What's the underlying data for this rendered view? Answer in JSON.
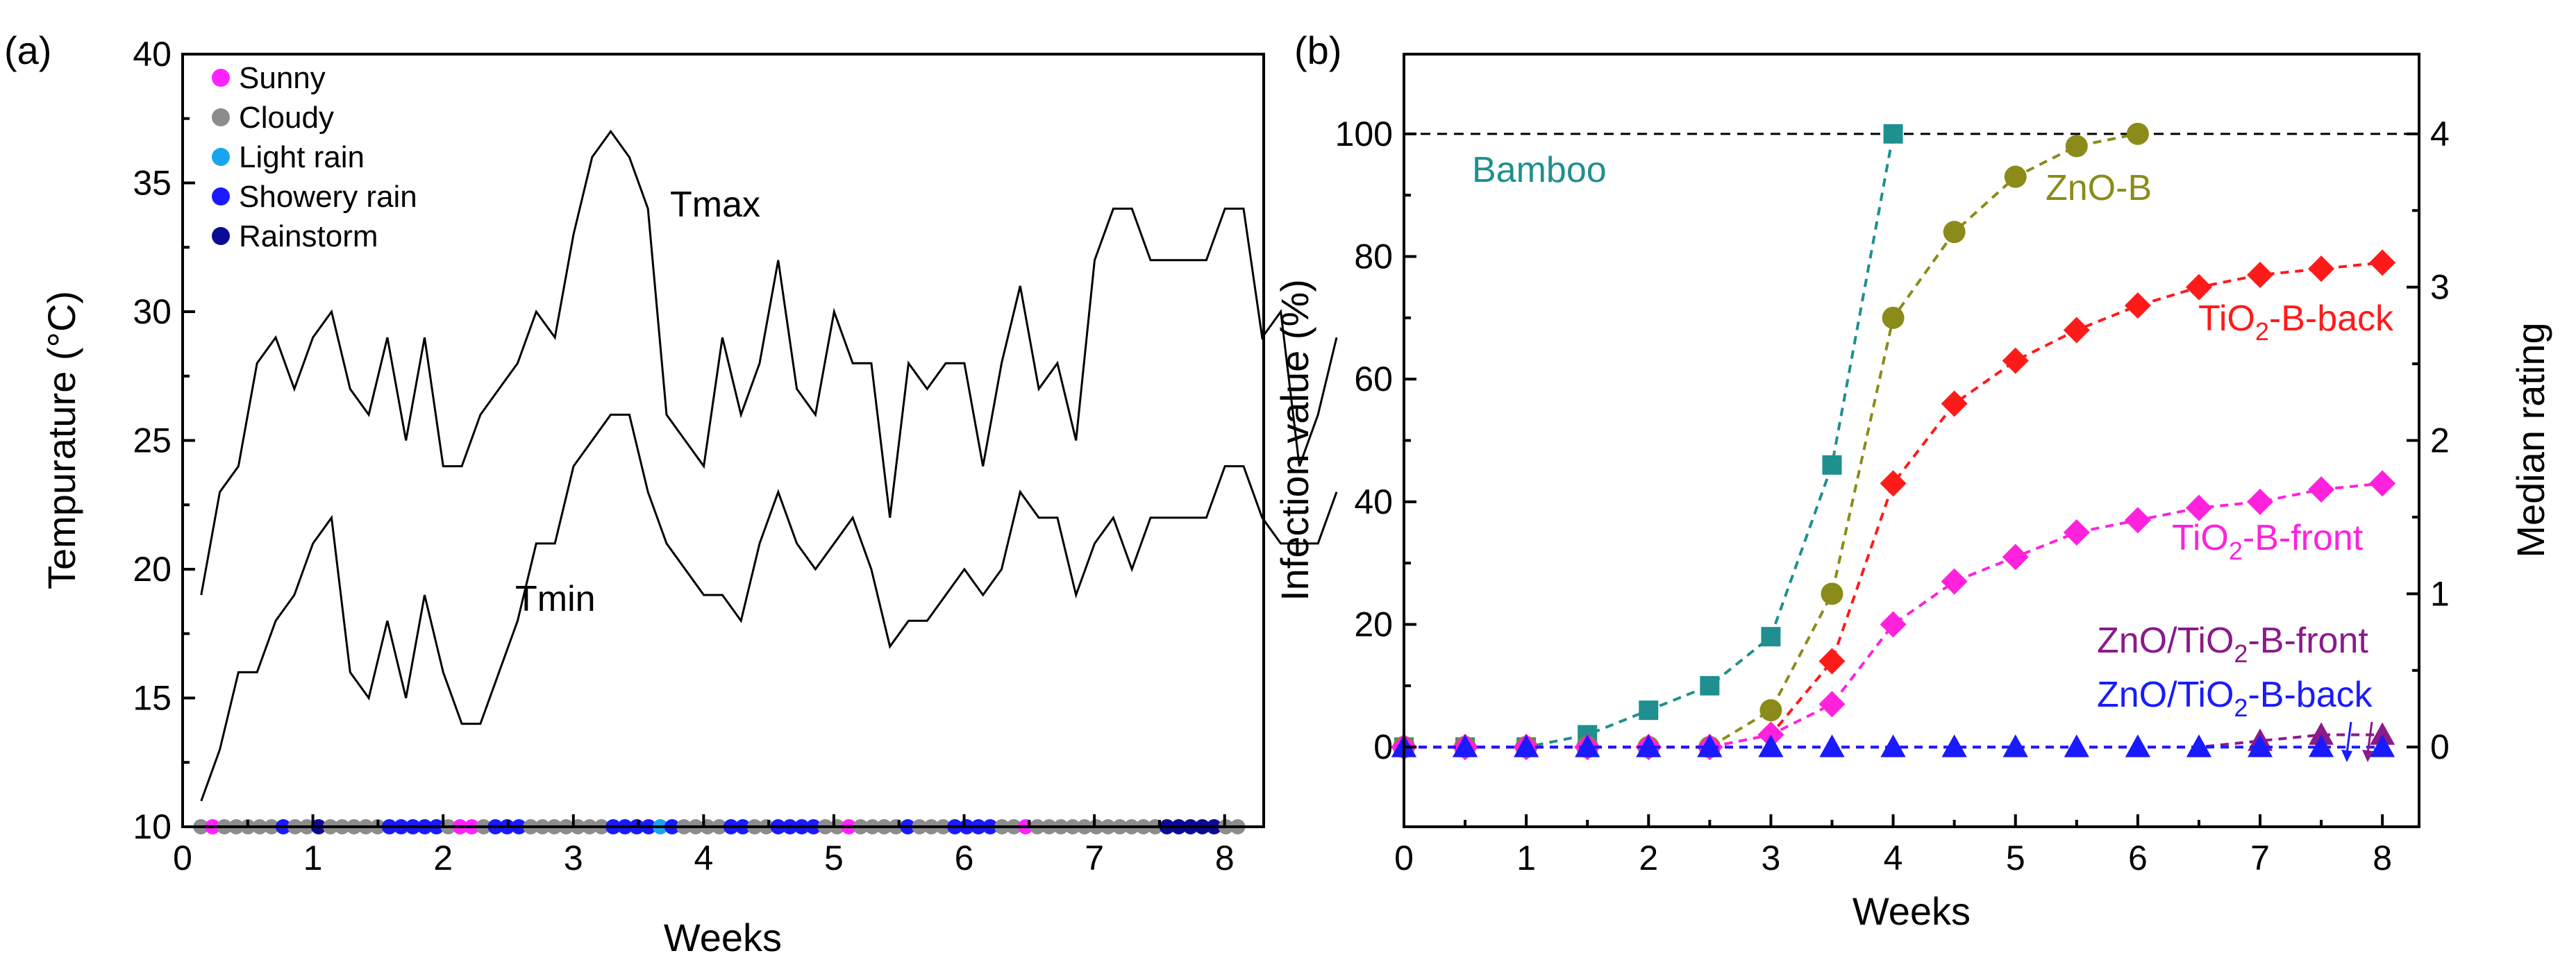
{
  "figure": {
    "panels": [
      "(a)",
      "(b)"
    ]
  },
  "chart_data": [
    {
      "type": "line",
      "panel_label": "(a)",
      "xlabel": "Weeks",
      "ylabel": "Tempurature (°C)",
      "xlim": [
        0,
        8.3
      ],
      "ylim": [
        10,
        40
      ],
      "xticks": [
        0,
        1,
        2,
        3,
        4,
        5,
        6,
        7,
        8
      ],
      "yticks": [
        10,
        15,
        20,
        25,
        30,
        35,
        40
      ],
      "x_start": 0.143,
      "x_step": 0.1429,
      "series": [
        {
          "name": "Tmax",
          "color": "#000000",
          "values": [
            19,
            23,
            24,
            28,
            29,
            27,
            29,
            30,
            27,
            26,
            29,
            25,
            29,
            24,
            24,
            26,
            27,
            28,
            30,
            29,
            33,
            36,
            37,
            36,
            34,
            26,
            25,
            24,
            29,
            26,
            28,
            32,
            27,
            26,
            30,
            28,
            28,
            22,
            28,
            27,
            28,
            28,
            24,
            28,
            31,
            27,
            28,
            25,
            32,
            34,
            34,
            32,
            32,
            32,
            32,
            34,
            34,
            29,
            30,
            24,
            26,
            29
          ]
        },
        {
          "name": "Tmin",
          "color": "#000000",
          "values": [
            11,
            13,
            16,
            16,
            18,
            19,
            21,
            22,
            16,
            15,
            18,
            15,
            19,
            16,
            14,
            14,
            16,
            18,
            21,
            21,
            24,
            25,
            26,
            26,
            23,
            21,
            20,
            19,
            19,
            18,
            21,
            23,
            21,
            20,
            21,
            22,
            20,
            17,
            18,
            18,
            19,
            20,
            19,
            20,
            23,
            22,
            22,
            19,
            21,
            22,
            20,
            22,
            22,
            22,
            22,
            24,
            24,
            22,
            21,
            21,
            21,
            23
          ]
        }
      ],
      "weather": {
        "legend": [
          {
            "key": "sunny",
            "label": "Sunny",
            "color": "#ff22ff"
          },
          {
            "key": "cloudy",
            "label": "Cloudy",
            "color": "#8c8c8c"
          },
          {
            "key": "light",
            "label": "Light rain",
            "color": "#1aa3ee"
          },
          {
            "key": "showery",
            "label": "Showery rain",
            "color": "#1a1aff"
          },
          {
            "key": "storm",
            "label": "Rainstorm",
            "color": "#0a0a96"
          }
        ],
        "y": 10,
        "days": [
          "cloudy",
          "sunny",
          "cloudy",
          "cloudy",
          "cloudy",
          "cloudy",
          "cloudy",
          "showery",
          "cloudy",
          "cloudy",
          "storm",
          "cloudy",
          "cloudy",
          "cloudy",
          "cloudy",
          "cloudy",
          "showery",
          "showery",
          "showery",
          "showery",
          "showery",
          "cloudy",
          "sunny",
          "sunny",
          "cloudy",
          "showery",
          "showery",
          "showery",
          "cloudy",
          "cloudy",
          "cloudy",
          "cloudy",
          "cloudy",
          "cloudy",
          "cloudy",
          "showery",
          "showery",
          "showery",
          "showery",
          "light",
          "showery",
          "cloudy",
          "cloudy",
          "cloudy",
          "cloudy",
          "showery",
          "showery",
          "cloudy",
          "cloudy",
          "showery",
          "showery",
          "showery",
          "showery",
          "cloudy",
          "cloudy",
          "sunny",
          "cloudy",
          "cloudy",
          "cloudy",
          "cloudy",
          "showery",
          "cloudy",
          "cloudy",
          "cloudy",
          "showery",
          "showery",
          "showery",
          "showery",
          "cloudy",
          "cloudy",
          "sunny",
          "cloudy",
          "cloudy",
          "cloudy",
          "cloudy",
          "cloudy",
          "cloudy",
          "cloudy",
          "cloudy",
          "cloudy",
          "cloudy",
          "cloudy",
          "storm",
          "storm",
          "storm",
          "storm",
          "storm",
          "cloudy",
          "cloudy"
        ]
      },
      "annotations": [
        "Tmax",
        "Tmin"
      ]
    },
    {
      "type": "line",
      "panel_label": "(b)",
      "xlabel": "Weeks",
      "ylabel": "Infection value (%)",
      "y2label": "Median rating",
      "xlim": [
        0,
        8.3
      ],
      "ylim": [
        -13,
        113
      ],
      "y2lim": [
        -0.52,
        4.52
      ],
      "xticks": [
        0,
        1,
        2,
        3,
        4,
        5,
        6,
        7,
        8
      ],
      "yticks": [
        0,
        20,
        40,
        60,
        80,
        100
      ],
      "y2ticks": [
        0,
        1,
        2,
        3,
        4
      ],
      "reference_line": 100,
      "series": [
        {
          "name": "Bamboo",
          "color": "#1f8f8f",
          "marker": "square",
          "x": [
            0,
            0.5,
            1,
            1.5,
            2,
            2.5,
            3,
            3.5,
            4
          ],
          "y": [
            0,
            0,
            0,
            2,
            6,
            10,
            18,
            46,
            100
          ]
        },
        {
          "name": "ZnO-B",
          "color": "#8b8b1a",
          "marker": "circle",
          "x": [
            0,
            0.5,
            1,
            1.5,
            2,
            2.5,
            3,
            3.5,
            4,
            4.5,
            5,
            5.5,
            6
          ],
          "y": [
            0,
            0,
            0,
            0,
            0,
            0,
            6,
            25,
            70,
            84,
            93,
            98,
            100
          ]
        },
        {
          "name": "TiO2-B-back",
          "color": "#ff1a1a",
          "marker": "diamond",
          "x": [
            0,
            0.5,
            1,
            1.5,
            2,
            2.5,
            3,
            3.5,
            4,
            4.5,
            5,
            5.5,
            6,
            6.5,
            7,
            7.5,
            8
          ],
          "y": [
            0,
            0,
            0,
            0,
            0,
            0,
            2,
            14,
            43,
            56,
            63,
            68,
            72,
            75,
            77,
            78,
            79
          ]
        },
        {
          "name": "TiO2-B-front",
          "color": "#ff22dd",
          "marker": "diamond",
          "x": [
            0,
            0.5,
            1,
            1.5,
            2,
            2.5,
            3,
            3.5,
            4,
            4.5,
            5,
            5.5,
            6,
            6.5,
            7,
            7.5,
            8
          ],
          "y": [
            0,
            0,
            0,
            0,
            0,
            0,
            2,
            7,
            20,
            27,
            31,
            35,
            37,
            39,
            40,
            42,
            43
          ]
        },
        {
          "name": "ZnO/TiO2-B-front",
          "color": "#8b1a8b",
          "marker": "triangle",
          "x": [
            0,
            0.5,
            1,
            1.5,
            2,
            2.5,
            3,
            3.5,
            4,
            4.5,
            5,
            5.5,
            6,
            6.5,
            7,
            7.5,
            8
          ],
          "y": [
            0,
            0,
            0,
            0,
            0,
            0,
            0,
            0,
            0,
            0,
            0,
            0,
            0,
            0,
            1,
            2,
            2
          ]
        },
        {
          "name": "ZnO/TiO2-B-back",
          "color": "#1a1aff",
          "marker": "triangle",
          "x": [
            0,
            0.5,
            1,
            1.5,
            2,
            2.5,
            3,
            3.5,
            4,
            4.5,
            5,
            5.5,
            6,
            6.5,
            7,
            7.5,
            8
          ],
          "y": [
            0,
            0,
            0,
            0,
            0,
            0,
            0,
            0,
            0,
            0,
            0,
            0,
            0,
            0,
            0,
            0,
            0
          ]
        }
      ],
      "labels": {
        "bamboo": "Bamboo",
        "znob": "ZnO-B",
        "tio2_back_pre": "TiO",
        "tio2_back_sub": "2",
        "tio2_back_post": "-B-back",
        "tio2_front_pre": "TiO",
        "tio2_front_sub": "2",
        "tio2_front_post": "-B-front",
        "zt_front_pre": "ZnO/TiO",
        "zt_front_sub": "2",
        "zt_front_post": "-B-front",
        "zt_back_pre": "ZnO/TiO",
        "zt_back_sub": "2",
        "zt_back_post": "-B-back"
      }
    }
  ]
}
